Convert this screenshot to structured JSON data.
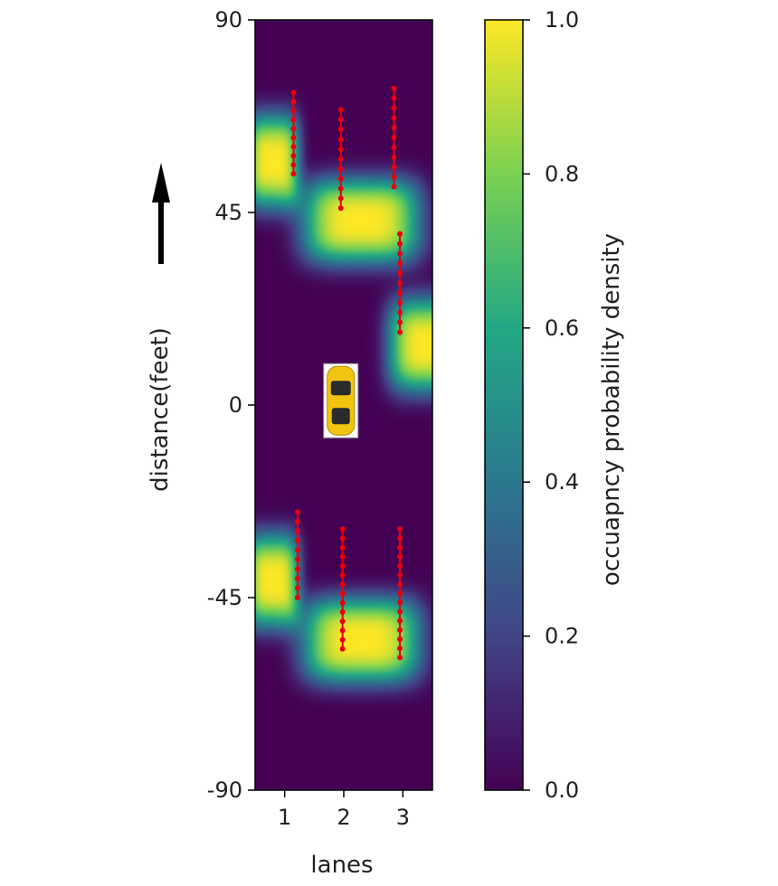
{
  "chart_data": {
    "type": "heatmap",
    "title": "",
    "xlabel": "lanes",
    "ylabel": "distance(feet)",
    "colorbar_label": "occuapncy probability density",
    "xlim": [
      0.5,
      3.5
    ],
    "ylim": [
      -90,
      90
    ],
    "x_ticks": [
      1,
      2,
      3
    ],
    "y_ticks": [
      90,
      45,
      0,
      -45,
      -90
    ],
    "colorbar_ticks": [
      "0.0",
      "0.2",
      "0.4",
      "0.6",
      "0.8",
      "1.0"
    ],
    "colormap": "viridis",
    "colormap_stops": [
      "#440154",
      "#414487",
      "#2a788e",
      "#22a884",
      "#7ad151",
      "#fde725"
    ],
    "density_blobs": [
      {
        "lane": 0.8,
        "y_center": 57,
        "y_half": 11,
        "x_half": 0.45
      },
      {
        "lane": 2.3,
        "y_center": 43,
        "y_half": 10,
        "x_half": 1.0
      },
      {
        "lane": 3.45,
        "y_center": 14,
        "y_half": 11,
        "x_half": 0.7
      },
      {
        "lane": 0.8,
        "y_center": -41,
        "y_half": 11,
        "x_half": 0.45
      },
      {
        "lane": 2.3,
        "y_center": -55,
        "y_half": 10,
        "x_half": 1.0
      }
    ],
    "series": [
      {
        "lane": 1.15,
        "y_from": 73,
        "y_to": 54
      },
      {
        "lane": 1.95,
        "y_from": 69,
        "y_to": 46
      },
      {
        "lane": 2.85,
        "y_from": 74,
        "y_to": 51
      },
      {
        "lane": 2.95,
        "y_from": 40,
        "y_to": 17
      },
      {
        "lane": 1.22,
        "y_from": -25,
        "y_to": -45
      },
      {
        "lane": 1.98,
        "y_from": -29,
        "y_to": -57
      },
      {
        "lane": 2.95,
        "y_from": -29,
        "y_to": -59
      }
    ],
    "trajectory_color": "#e8000b",
    "ego_vehicle": {
      "lane": 1.95,
      "y": 1
    },
    "direction_arrow": "up"
  }
}
